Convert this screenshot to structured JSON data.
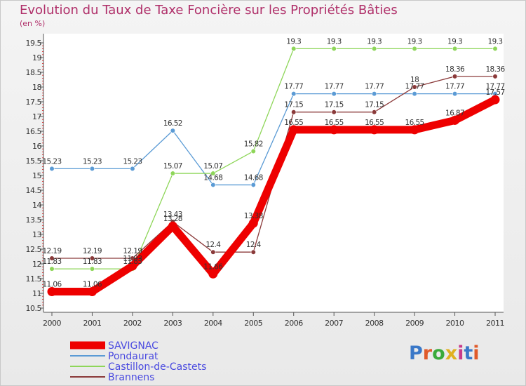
{
  "title": "Evolution du Taux de Taxe Foncière sur les Propriétés Bâties",
  "unit_label": "(en %)",
  "logo": {
    "text": "Proxiti",
    "letter_colors": [
      "#3a78c8",
      "#e05a2a",
      "#3aaa3a",
      "#e0b020",
      "#c83a8a",
      "#3a78c8",
      "#e05a2a"
    ]
  },
  "chart_data": {
    "type": "line",
    "title": "Evolution du Taux de Taxe Foncière sur les Propriétés Bâties",
    "ylabel": "(en %)",
    "x": [
      "2000",
      "2001",
      "2002",
      "2003",
      "2004",
      "2005",
      "2006",
      "2007",
      "2008",
      "2009",
      "2010",
      "2011"
    ],
    "ylim": [
      10.5,
      19.5
    ],
    "yticks": [
      "10.5",
      "11",
      "11.5",
      "12",
      "12.5",
      "13",
      "13.5",
      "14",
      "14.5",
      "15",
      "15.5",
      "16",
      "16.5",
      "17",
      "17.5",
      "18",
      "18.5",
      "19",
      "19.5"
    ],
    "grid": false,
    "legend_position": "bottom-left",
    "series": [
      {
        "name": "SAVIGNAC",
        "color": "#ee0000",
        "values": [
          11.06,
          11.06,
          11.93,
          13.28,
          11.66,
          13.38,
          16.55,
          16.55,
          16.55,
          16.55,
          16.87,
          17.57
        ],
        "labels": [
          "11.06",
          "11.06",
          "11.93",
          "13.28",
          "11.66",
          "13.38",
          "16.55",
          "16.55",
          "16.55",
          "16.55",
          "16.87",
          "17.57"
        ]
      },
      {
        "name": "Pondaurat",
        "color": "#5b9bd5",
        "values": [
          15.23,
          15.23,
          15.23,
          16.52,
          14.68,
          14.68,
          17.77,
          17.77,
          17.77,
          17.77,
          17.77,
          17.77
        ],
        "labels": [
          "15.23",
          "15.23",
          "15.23",
          "16.52",
          "14.68",
          "14.68",
          "17.77",
          "17.77",
          "17.77",
          "17.77",
          "17.77",
          "17.77"
        ]
      },
      {
        "name": "Castillon-de-Castets",
        "color": "#8ed659",
        "values": [
          11.83,
          11.83,
          11.83,
          15.07,
          15.07,
          15.82,
          19.3,
          19.3,
          19.3,
          19.3,
          19.3,
          19.3
        ],
        "labels": [
          "11.83",
          "11.83",
          "11.83",
          "15.07",
          "15.07",
          "15.82",
          "19.3",
          "19.3",
          "19.3",
          "19.3",
          "19.3",
          "19.3"
        ]
      },
      {
        "name": "Brannens",
        "color": "#8b3a3a",
        "values": [
          12.19,
          12.19,
          12.19,
          13.43,
          12.4,
          12.4,
          17.15,
          17.15,
          17.15,
          18,
          18.36,
          18.36
        ],
        "labels": [
          "12.19",
          "12.19",
          "12.19",
          "13.43",
          "12.4",
          "12.4",
          "17.15",
          "17.15",
          "17.15",
          "18",
          "18.36",
          "18.36"
        ]
      }
    ]
  }
}
